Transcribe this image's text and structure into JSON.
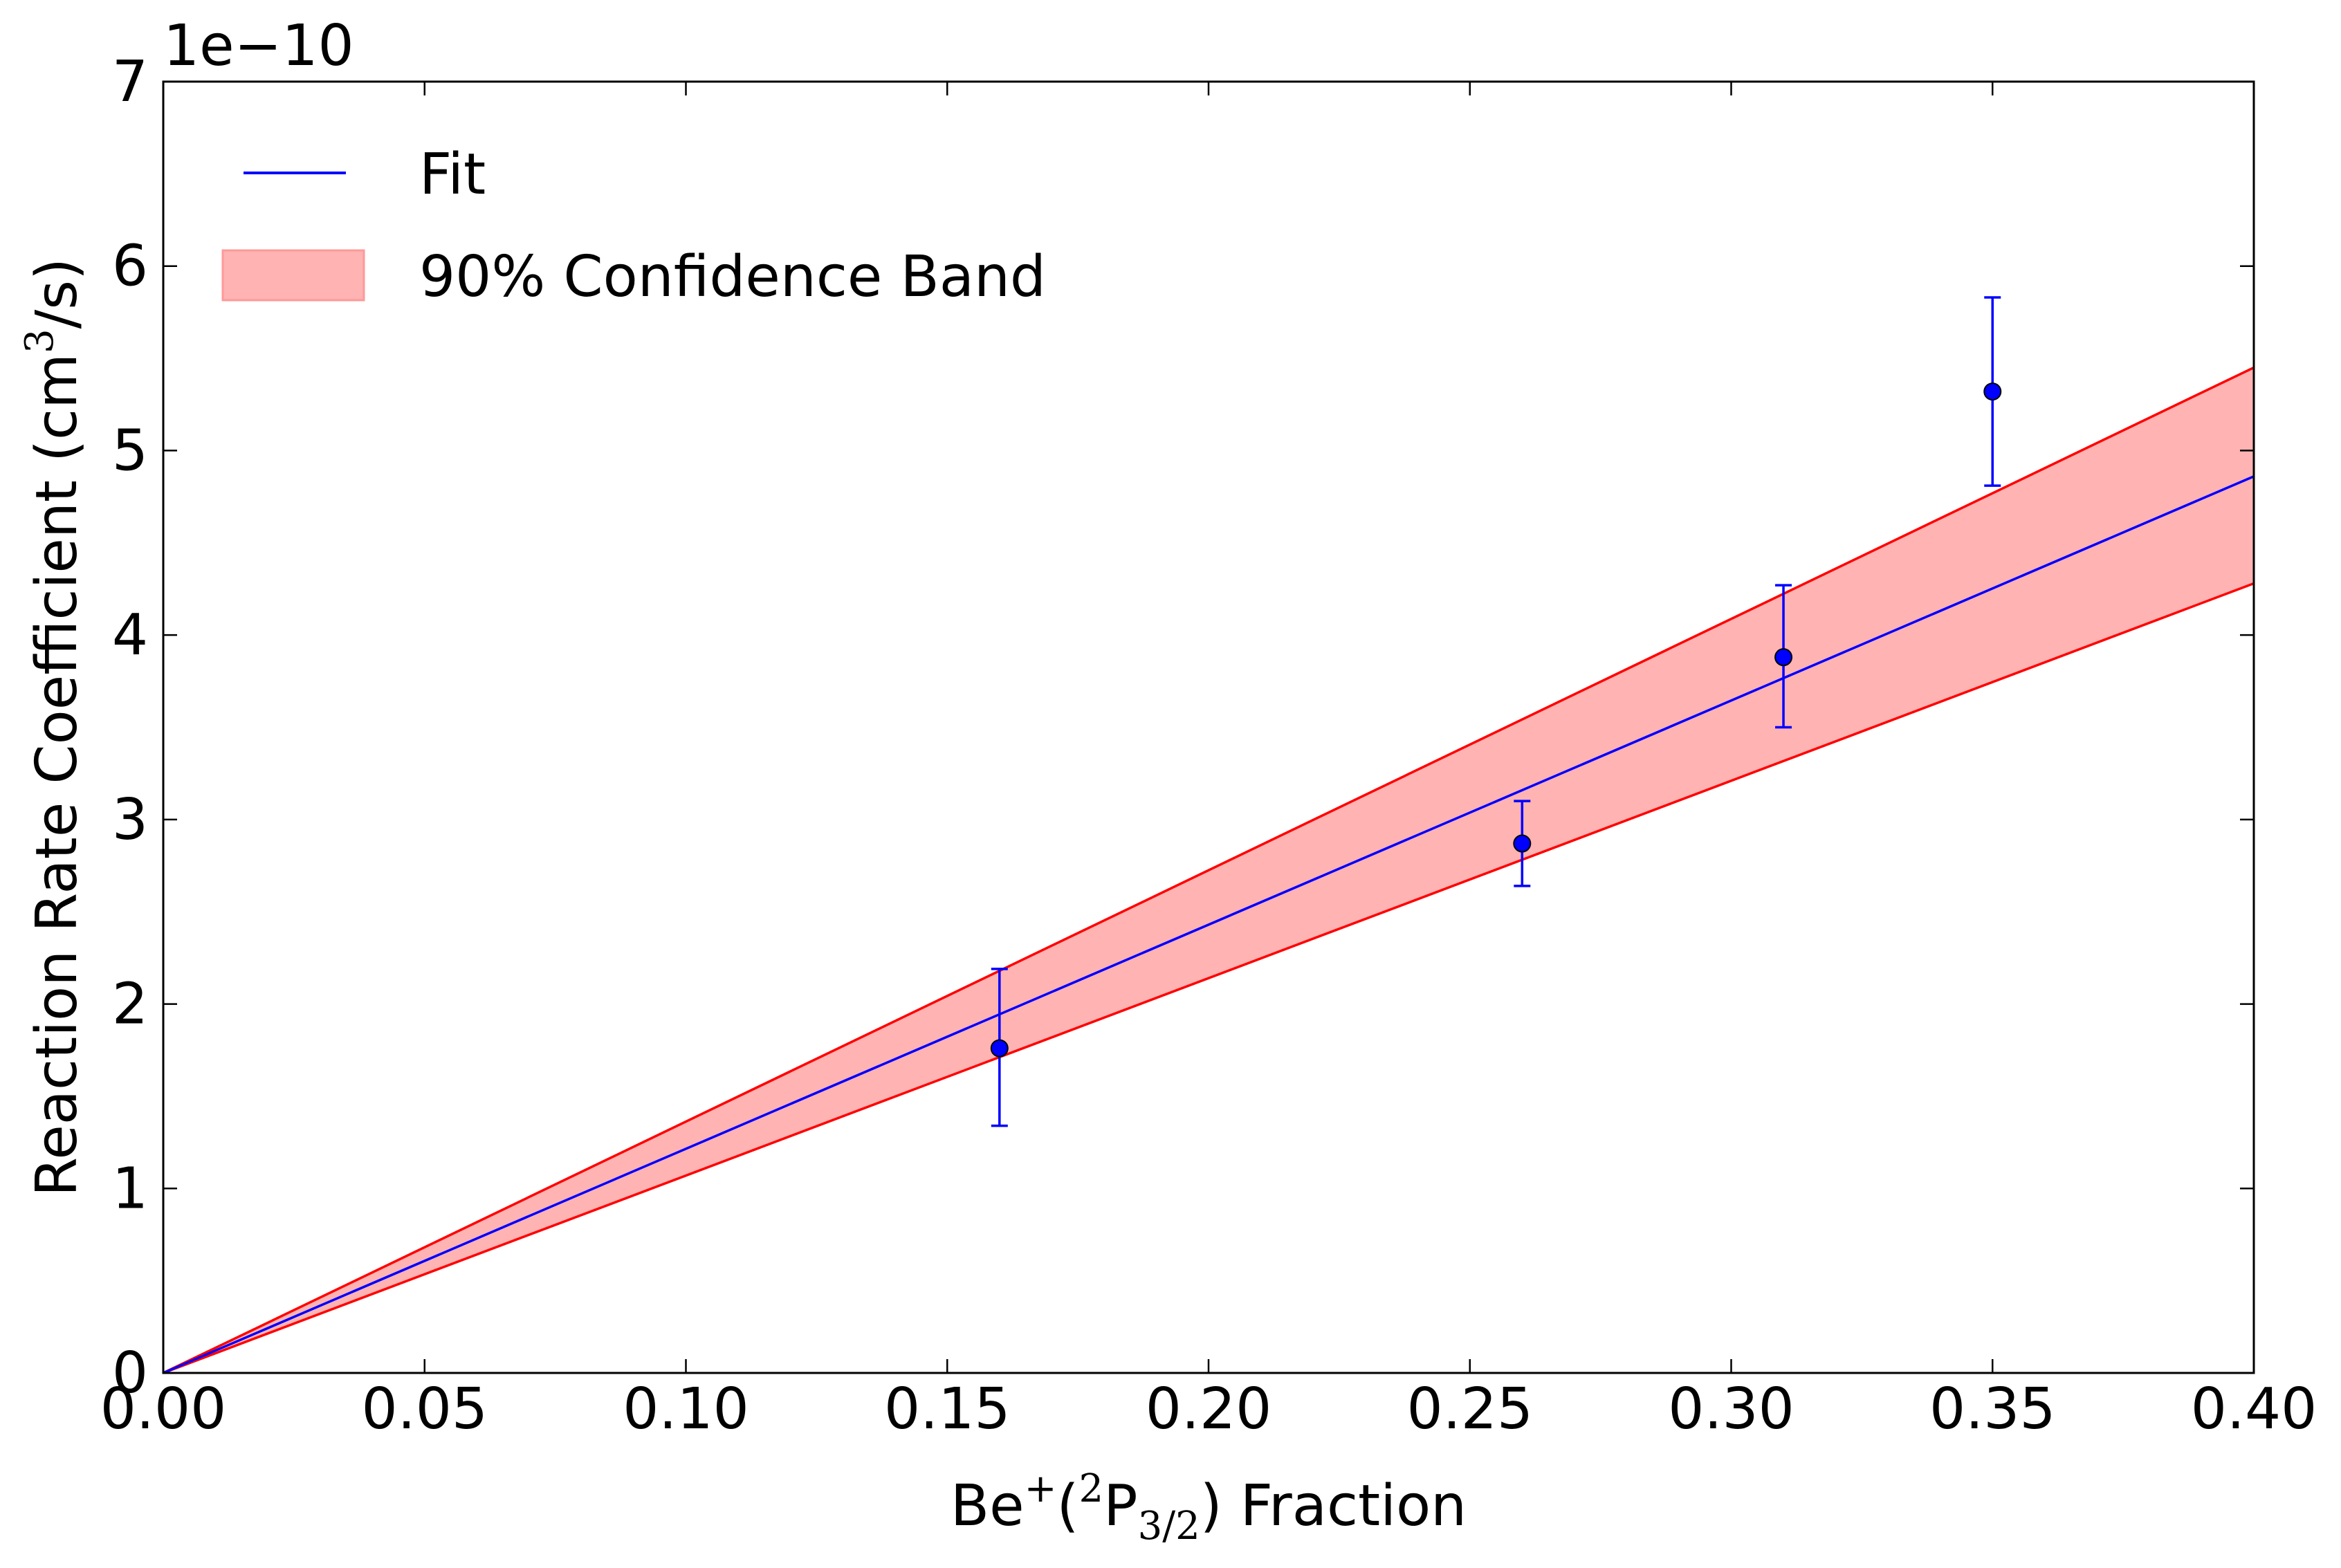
{
  "chart_data": {
    "type": "line",
    "title": "",
    "xlabel": "Be⁺(²P₃/₂) Fraction",
    "xlabel_parts": {
      "base": "Be",
      "sup_charge": "+",
      "open": "(",
      "sup_state": "2",
      "state": "P",
      "sub_state": "3/2",
      "close": ")",
      "suffix": " Fraction"
    },
    "ylabel": "Reaction Rate Coefficient (cm³/s)",
    "ylabel_parts": {
      "before": "Reaction Rate Coefficient (cm",
      "sup": "3",
      "after": "/s)"
    },
    "y_offset_text": "1e−10",
    "xlim": [
      0.0,
      0.4
    ],
    "ylim": [
      0,
      7
    ],
    "y_scale_multiplier": 1e-10,
    "x_ticks": [
      0.0,
      0.05,
      0.1,
      0.15,
      0.2,
      0.25,
      0.3,
      0.35,
      0.4
    ],
    "x_tick_labels": [
      "0.00",
      "0.05",
      "0.10",
      "0.15",
      "0.20",
      "0.25",
      "0.30",
      "0.35",
      "0.40"
    ],
    "y_ticks": [
      0,
      1,
      2,
      3,
      4,
      5,
      6,
      7
    ],
    "y_tick_labels": [
      "0",
      "1",
      "2",
      "3",
      "4",
      "5",
      "6",
      "7"
    ],
    "grid": false,
    "legend_position": "top-left",
    "series": [
      {
        "name": "Fit",
        "kind": "line",
        "color": "#0000ff",
        "x": [
          0.0,
          0.4
        ],
        "y": [
          0.0,
          4.86
        ]
      },
      {
        "name": "90% Confidence Band",
        "kind": "band",
        "fill_color": "#ff9999",
        "edge_color": "#ff0000",
        "x": [
          0.0,
          0.4
        ],
        "y_lower": [
          0.0,
          4.28
        ],
        "y_upper": [
          0.0,
          5.45
        ]
      },
      {
        "name": "",
        "kind": "errorbar",
        "color": "#0000ff",
        "x": [
          0.16,
          0.26,
          0.31,
          0.35
        ],
        "y": [
          1.76,
          2.87,
          3.88,
          5.32
        ],
        "y_err_low": [
          0.42,
          0.23,
          0.38,
          0.51
        ],
        "y_err_high": [
          0.43,
          0.23,
          0.39,
          0.51
        ]
      }
    ]
  }
}
